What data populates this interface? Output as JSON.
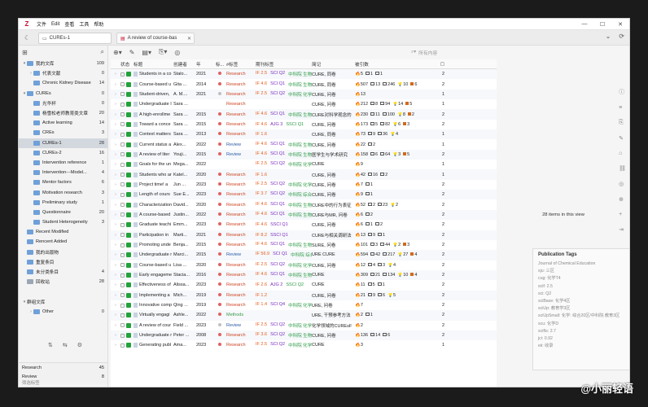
{
  "menubar": {
    "logo": "Z",
    "items": [
      "文件",
      "Edit",
      "查看",
      "工具",
      "帮助"
    ]
  },
  "tabs": {
    "library_tab": "CUREs-1",
    "item_tab": "A review of course-bas"
  },
  "toolbar": {
    "search_placeholder": "所有内容"
  },
  "sidebar": {
    "items": [
      {
        "label": "我的文库",
        "count": "109",
        "level": 0,
        "icon": "library",
        "tw": "▾"
      },
      {
        "label": "代表文献",
        "count": "0",
        "level": 1,
        "icon": "folder",
        "tw": "›"
      },
      {
        "label": "Chronic Kidney Disease",
        "count": "14",
        "level": 1,
        "icon": "folder",
        "tw": ""
      },
      {
        "label": "CUREs",
        "count": "0",
        "level": 0,
        "icon": "folder",
        "tw": "▾"
      },
      {
        "label": "光华杯",
        "count": "0",
        "level": 1,
        "icon": "folder",
        "tw": ""
      },
      {
        "label": "杨雪松老师教育类文章",
        "count": "20",
        "level": 1,
        "icon": "folder",
        "tw": ""
      },
      {
        "label": "Active learning",
        "count": "14",
        "level": 1,
        "icon": "folder",
        "tw": ""
      },
      {
        "label": "CREs",
        "count": "3",
        "level": 1,
        "icon": "folder",
        "tw": ""
      },
      {
        "label": "CUREs-1",
        "count": "28",
        "level": 1,
        "icon": "folder",
        "tw": "",
        "selected": true
      },
      {
        "label": "CUREs-2",
        "count": "16",
        "level": 1,
        "icon": "folder",
        "tw": ""
      },
      {
        "label": "Intervention reference",
        "count": "1",
        "level": 1,
        "icon": "folder",
        "tw": ""
      },
      {
        "label": "Intervention---Model...",
        "count": "4",
        "level": 1,
        "icon": "folder",
        "tw": ""
      },
      {
        "label": "Mentor factors",
        "count": "6",
        "level": 1,
        "icon": "folder",
        "tw": ""
      },
      {
        "label": "Motivation research",
        "count": "3",
        "level": 1,
        "icon": "folder",
        "tw": ""
      },
      {
        "label": "Preliminary study",
        "count": "1",
        "level": 1,
        "icon": "folder",
        "tw": ""
      },
      {
        "label": "Questionnaire",
        "count": "20",
        "level": 1,
        "icon": "folder",
        "tw": ""
      },
      {
        "label": "Student Heterogeneity",
        "count": "3",
        "level": 1,
        "icon": "folder",
        "tw": ""
      },
      {
        "label": "Recent Modified",
        "count": "",
        "level": 0,
        "icon": "folder",
        "tw": ""
      },
      {
        "label": "Rencent Added",
        "count": "",
        "level": 0,
        "icon": "folder",
        "tw": ""
      },
      {
        "label": "我的出版物",
        "count": "",
        "level": 0,
        "icon": "folder",
        "tw": ""
      },
      {
        "label": "重复条目",
        "count": "",
        "level": 0,
        "icon": "folder",
        "tw": ""
      },
      {
        "label": "未分类条目",
        "count": "4",
        "level": 0,
        "icon": "folder",
        "tw": ""
      },
      {
        "label": "回收站",
        "count": "28",
        "level": 0,
        "icon": "trash",
        "tw": ""
      },
      {
        "label": "",
        "count": "",
        "level": 0,
        "icon": "none",
        "tw": ""
      },
      {
        "label": "群组文库",
        "count": "",
        "level": 0,
        "icon": "none",
        "tw": "▾"
      },
      {
        "label": "Other",
        "count": "0",
        "level": 1,
        "icon": "folder",
        "tw": "›"
      }
    ],
    "tags": [
      {
        "label": "Research",
        "count": "45"
      },
      {
        "label": "Review",
        "count": "8"
      }
    ],
    "filter_placeholder": "筛选标签"
  },
  "table": {
    "headers": [
      "状态",
      "标题",
      "创建者",
      "年",
      "标...",
      "#标签",
      "期刊标签",
      "简记",
      "被引数"
    ],
    "rows": [
      {
        "title": "Students in a co",
        "author": "Stalo...",
        "year": "2021",
        "dot": "#e06060",
        "tag": "Research",
        "tagc": "#c42",
        "jr": [
          "IF 2.5",
          "SCI Q2",
          "中科院 生物3区"
        ],
        "abs": "CURE, 同卷",
        "ci": [
          "5",
          "1",
          "1"
        ],
        "cn": "2"
      },
      {
        "title": "Course-based u",
        "author": "Gita ...",
        "year": "2014",
        "dot": "#e06060",
        "tag": "Research",
        "tagc": "#c42",
        "jr": [
          "IF 4.6",
          "SCI Q1",
          "中科院 生物3区"
        ],
        "abs": "CURE, 同卷",
        "ci": [
          "507",
          "13",
          "246",
          "10",
          "6"
        ],
        "cn": "2"
      },
      {
        "title": "Student-driven,",
        "author": "A. M....",
        "year": "2021",
        "dot": "#c0c0c0",
        "tag": "Research",
        "tagc": "#c42",
        "jr": [
          "IF 2.5",
          "SCI Q2",
          "中科院 化学4区"
        ],
        "abs": "CURE, 问卷",
        "ci": [
          "13"
        ],
        "cn": "1"
      },
      {
        "title": "Undergraduate I",
        "author": "Sara ...",
        "year": "",
        "dot": "",
        "tag": "Research",
        "tagc": "#c42",
        "jr": [],
        "abs": "CURE, 问卷",
        "ci": [
          "212",
          "8",
          "94",
          "14",
          "5"
        ],
        "cn": "1"
      },
      {
        "title": "A high-enrollme",
        "author": "Sara ...",
        "year": "2015",
        "dot": "#e06060",
        "tag": "Research",
        "tagc": "#c42",
        "jr": [
          "IF 4.6",
          "SCI Q1",
          "中科院 生物3区"
        ],
        "abs": "CURE对科学观念的",
        "ci": [
          "230",
          "11",
          "100",
          "8",
          "2"
        ],
        "cn": "2"
      },
      {
        "title": "Toward a conce",
        "author": "Sara ...",
        "year": "2015",
        "dot": "#e06060",
        "tag": "Research",
        "tagc": "#c42",
        "jr": [
          "IF 4.6",
          "AJG 3",
          "SSCI Q1"
        ],
        "abs": "CURE, 问卷",
        "ci": [
          "173",
          "5",
          "82",
          "6",
          "3"
        ],
        "cn": "2"
      },
      {
        "title": "Context matters",
        "author": "Sara ...",
        "year": "2013",
        "dot": "#e06060",
        "tag": "Research",
        "tagc": "#c42",
        "jr": [
          "IF 1.6"
        ],
        "abs": "CURE, 同卷",
        "ci": [
          "73",
          "9",
          "36",
          "4"
        ],
        "cn": "1"
      },
      {
        "title": "Current status a",
        "author": "Alex...",
        "year": "2022",
        "dot": "#e06060",
        "tag": "Review",
        "tagc": "#2a5aa8",
        "jr": [
          "IF 4.6",
          "SCI Q1",
          "中科院 生物3区"
        ],
        "abs": "CURE, 问卷",
        "ci": [
          "22",
          "2"
        ],
        "cn": "1"
      },
      {
        "title": "A review of liter",
        "author": "Youji...",
        "year": "2015",
        "dot": "#e06060",
        "tag": "Review",
        "tagc": "#2a5aa8",
        "jr": [
          "IF 4.6",
          "SCI Q1",
          "中科院 生物3区"
        ],
        "abs": "医学生与学术研究",
        "ci": [
          "158",
          "6",
          "64",
          "3",
          "5"
        ],
        "cn": "2"
      },
      {
        "title": "Goals for the un",
        "author": "Mega...",
        "year": "2022",
        "dot": "",
        "tag": "",
        "tagc": "#c42",
        "jr": [
          "IF 2.5",
          "SCI Q2",
          "中科院 化学4区"
        ],
        "abs": "CURE",
        "ci": [
          "9"
        ],
        "cn": "1"
      },
      {
        "title": "Students who ar",
        "author": "Katel...",
        "year": "2020",
        "dot": "#e06060",
        "tag": "Research",
        "tagc": "#c42",
        "jr": [
          "IF 1.6"
        ],
        "abs": "CURE, 问卷",
        "ci": [
          "42",
          "16",
          "2"
        ],
        "cn": "1"
      },
      {
        "title": "Project time! a",
        "author": "Jun ...",
        "year": "2023",
        "dot": "#e06060",
        "tag": "Research",
        "tagc": "#c42",
        "jr": [
          "IF 2.5",
          "SCI Q2",
          "中科院 化学4区"
        ],
        "abs": "CURE, 问卷",
        "ci": [
          "7",
          "1"
        ],
        "cn": "2"
      },
      {
        "title": "Length of cours",
        "author": "Sue E...",
        "year": "2023",
        "dot": "#e06060",
        "tag": "Research",
        "tagc": "#c42",
        "jr": [
          "IF 3.7",
          "SCI Q2",
          "中科院 综合性期刊"
        ],
        "abs": "CURE, 问卷",
        "ci": [
          "9",
          "1"
        ],
        "cn": "2"
      },
      {
        "title": "Characterization",
        "author": "David...",
        "year": "2020",
        "dot": "#e06060",
        "tag": "Research",
        "tagc": "#c42",
        "jr": [
          "IF 4.6",
          "SCI Q1",
          "中科院 生物3区"
        ],
        "abs": "CURE中的行为表征",
        "ci": [
          "52",
          "2",
          "23",
          "2"
        ],
        "cn": "2"
      },
      {
        "title": "A course-based",
        "author": "Justin...",
        "year": "2022",
        "dot": "#e06060",
        "tag": "Research",
        "tagc": "#c42",
        "jr": [
          "IF 4.6",
          "SCI Q1",
          "中科院 生物3区"
        ],
        "abs": "CURE与MR, 问卷",
        "ci": [
          "6",
          "2"
        ],
        "cn": "2"
      },
      {
        "title": "Graduate teachi",
        "author": "Emm...",
        "year": "2023",
        "dot": "#e06060",
        "tag": "Research",
        "tagc": "#c42",
        "jr": [
          "IF 4.6",
          "SSCI Q1"
        ],
        "abs": "CURE, 问卷",
        "ci": [
          "6",
          "1",
          "2"
        ],
        "cn": "2"
      },
      {
        "title": "Participation in",
        "author": "Marti...",
        "year": "2021",
        "dot": "#e06060",
        "tag": "Research",
        "tagc": "#c42",
        "jr": [
          "IF 8.2",
          "SSCI Q1"
        ],
        "abs": "CURE与相关调研法",
        "ci": [
          "13",
          "9",
          "1"
        ],
        "cn": "2"
      },
      {
        "title": "Promoting unde",
        "author": "Benja...",
        "year": "2015",
        "dot": "#e06060",
        "tag": "Research",
        "tagc": "#c42",
        "jr": [
          "IF 4.6",
          "SCI Q1",
          "中科院 生物3区"
        ],
        "abs": "SURE, 问卷",
        "ci": [
          "101",
          "3",
          "44",
          "2",
          "3"
        ],
        "cn": "2"
      },
      {
        "title": "Undergraduate r",
        "author": "Marci...",
        "year": "2015",
        "dot": "#e06060",
        "tag": "Review",
        "tagc": "#2a5aa8",
        "jr": [
          "IF 56.9",
          "SCI Q1",
          "中科院 综合性期刊"
        ],
        "abs": "URE CURE",
        "ci": [
          "594",
          "42",
          "217",
          "27",
          "4"
        ],
        "cn": "2"
      },
      {
        "title": "Course-based u",
        "author": "Lisa ...",
        "year": "2020",
        "dot": "#e06060",
        "tag": "Research",
        "tagc": "#c42",
        "jr": [
          "IF 2.5",
          "SCI Q2",
          "中科院 化学4区"
        ],
        "abs": "CURE, 问卷",
        "ci": [
          "12",
          "4",
          "3",
          "4"
        ],
        "cn": "2"
      },
      {
        "title": "Early engageme",
        "author": "Stacia...",
        "year": "2016",
        "dot": "#e06060",
        "tag": "Research",
        "tagc": "#c42",
        "jr": [
          "IF 4.6",
          "SCI Q1",
          "中科院 生物3区"
        ],
        "abs": "CURE",
        "ci": [
          "309",
          "21",
          "134",
          "10",
          "4"
        ],
        "cn": "2"
      },
      {
        "title": "Effectiveness of",
        "author": "Alissa...",
        "year": "2023",
        "dot": "#e06060",
        "tag": "Research",
        "tagc": "#c42",
        "jr": [
          "IF 2.6",
          "AJG 2",
          "SSCI Q2"
        ],
        "abs": "CURE",
        "ci": [
          "11",
          "5",
          "1"
        ],
        "cn": "2"
      },
      {
        "title": "Implementing a",
        "author": "Mich...",
        "year": "2019",
        "dot": "#e06060",
        "tag": "Research",
        "tagc": "#c42",
        "jr": [
          "IF 1.2"
        ],
        "abs": "CURE, 问卷",
        "ci": [
          "21",
          "9",
          "6",
          "5"
        ],
        "cn": "2"
      },
      {
        "title": "Innovative comp",
        "author": "Qing ...",
        "year": "2019",
        "dot": "#e06060",
        "tag": "Research",
        "tagc": "#c42",
        "jr": [
          "IF 1.4",
          "SCI Q4",
          "中科院 化学4区"
        ],
        "abs": "URE, 问卷",
        "ci": [
          "7"
        ],
        "cn": "2"
      },
      {
        "title": "Virtually engagi",
        "author": "Ashle...",
        "year": "2022",
        "dot": "#e06060",
        "tag": "Methods",
        "tagc": "#3a9a4a",
        "jr": [],
        "abs": "URE, 干预参考方法",
        "ci": [
          "2",
          "1"
        ],
        "cn": "2"
      },
      {
        "title": "A review of cour",
        "author": "Field ...",
        "year": "2023",
        "dot": "#c0c0c0",
        "tag": "Review",
        "tagc": "#2a5aa8",
        "jr": [
          "IF 2.5",
          "SCI Q2",
          "中科院 化学4区"
        ],
        "abs": "化学领域的CUREsF",
        "ci": [
          "2"
        ],
        "cn": "2"
      },
      {
        "title": "Undergraduate r",
        "author": "Peter ...",
        "year": "2008",
        "dot": "#e06060",
        "tag": "Research",
        "tagc": "#c42",
        "jr": [
          "IF 3.6",
          "SCI Q2",
          "中科院 生物3区"
        ],
        "abs": "CURE, 问卷",
        "ci": [
          "136",
          "14",
          "6"
        ],
        "cn": "2"
      },
      {
        "title": "Generating publ",
        "author": "Ama...",
        "year": "2023",
        "dot": "#e06060",
        "tag": "Research",
        "tagc": "#c42",
        "jr": [
          "IF 2.5",
          "SCI Q2",
          "中科院 化学4区"
        ],
        "abs": "CURE",
        "ci": [
          "3"
        ],
        "cn": "1"
      }
    ]
  },
  "right_pane": {
    "count_text": "28 items in this view",
    "pub_tags_title": "Publication Tags",
    "pub_tags": [
      "Journal of Chemical Education",
      "sju: 三区",
      "cug: 化学T4",
      "scif: 2.5",
      "sci: Q2",
      "sciBase: 化学4区",
      "sciUp: 教育学3区",
      "sciUpSmall: 化学: 综合20区/中科院 教育3区",
      "scu: 化学D",
      "scifts: 2.7",
      "jci: 0.92",
      "eii: 收录"
    ]
  },
  "watermark": "@小丽轻语"
}
